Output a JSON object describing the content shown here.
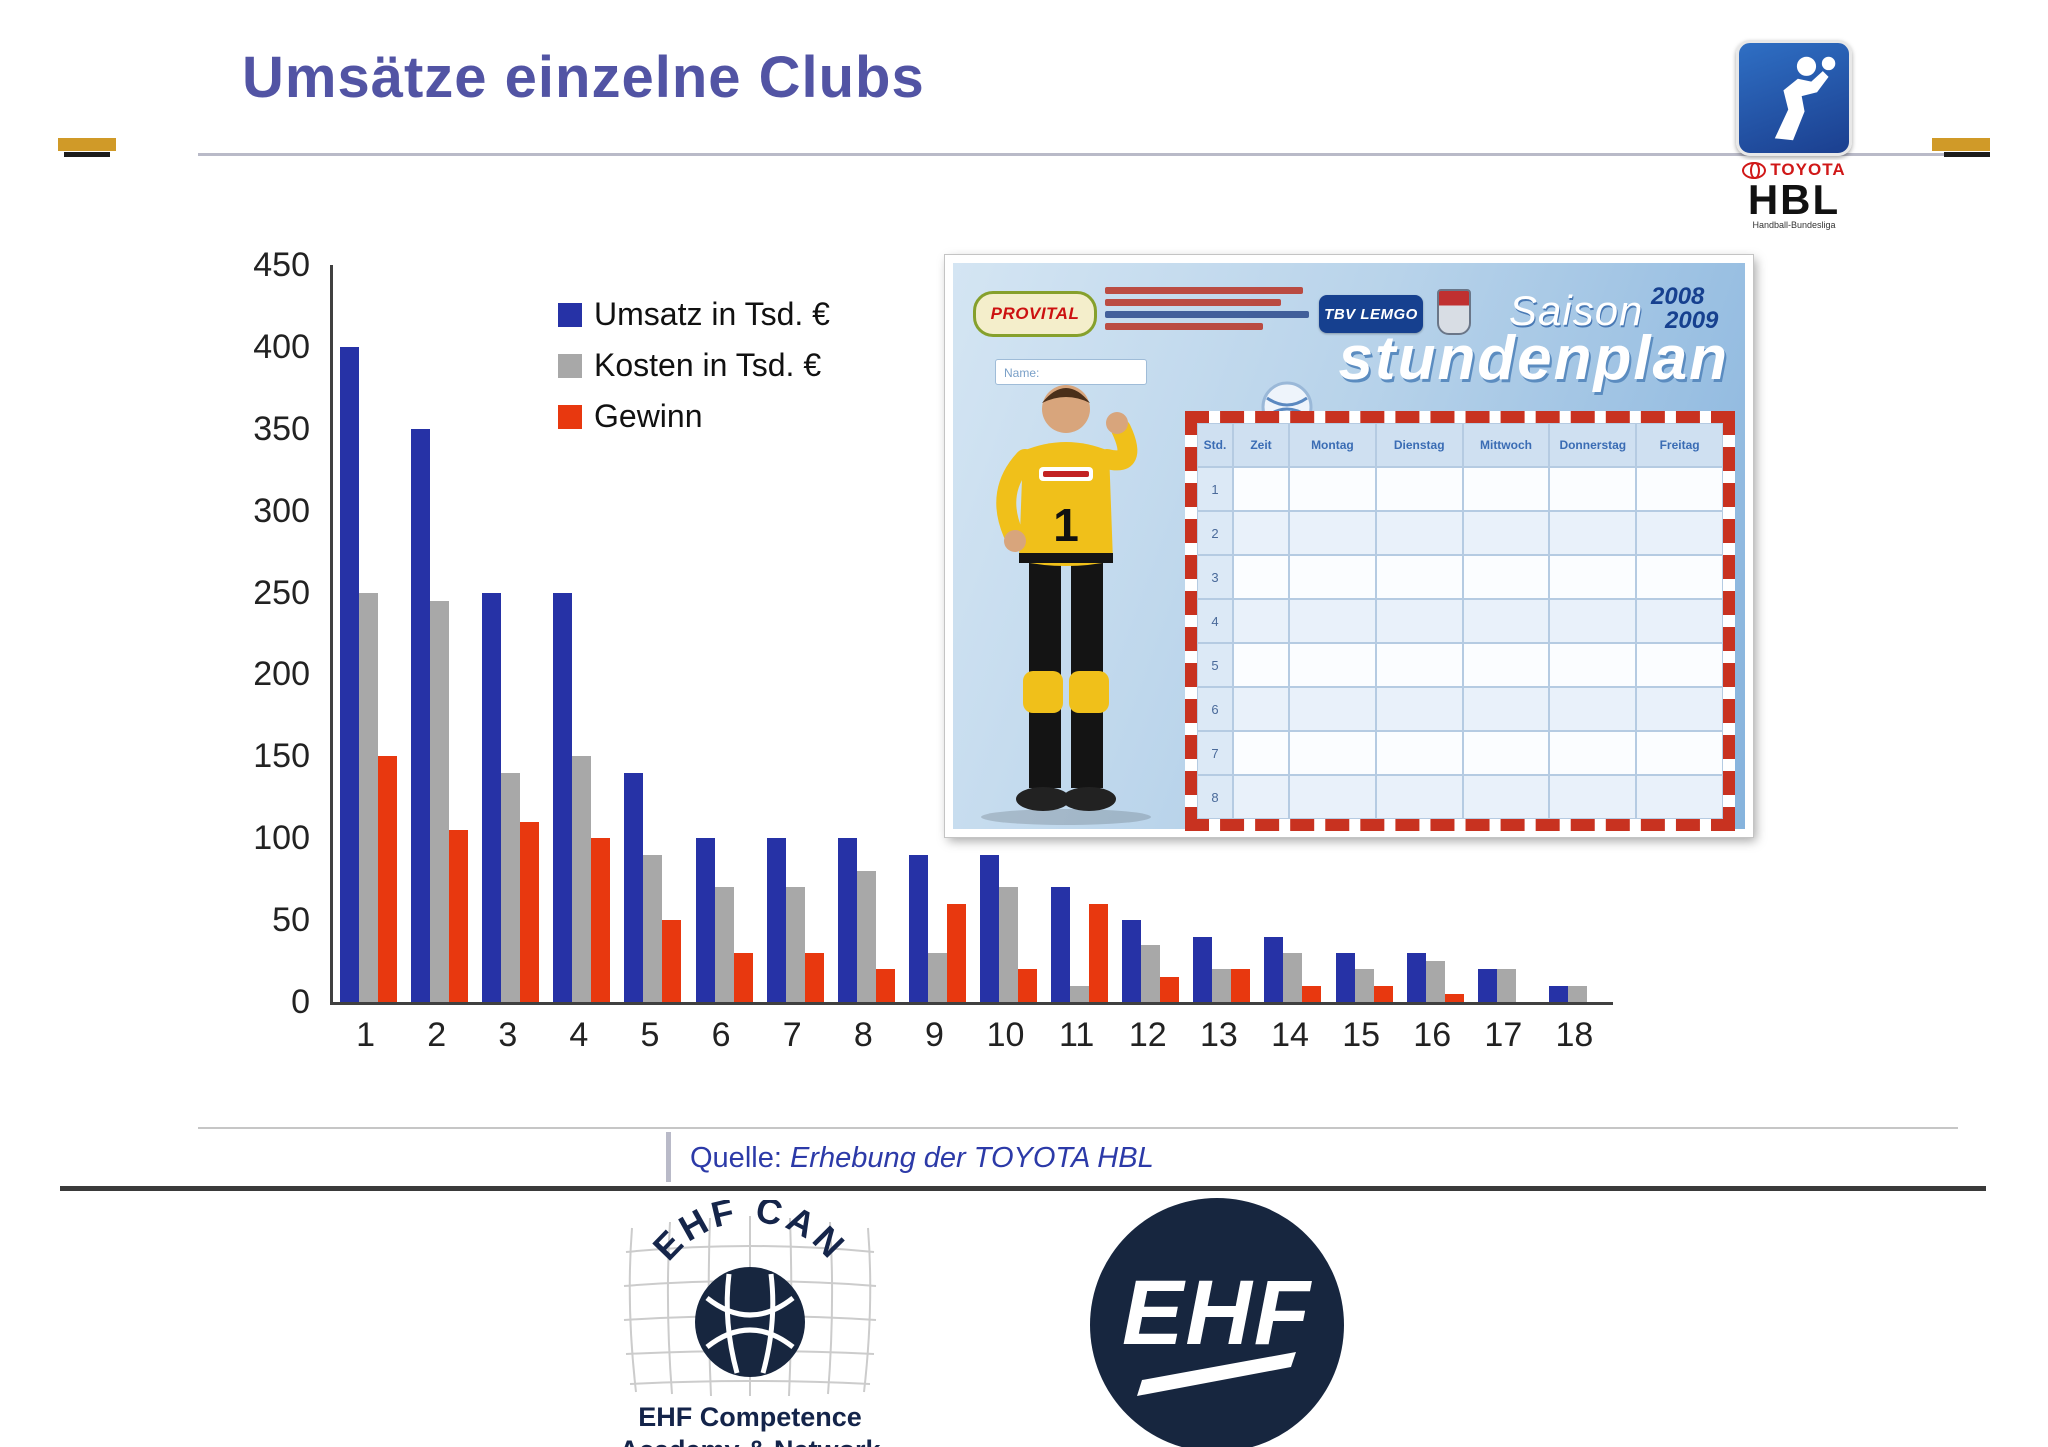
{
  "slide": {
    "title": "Umsätze einzelne Clubs",
    "source_label": "Quelle:",
    "source_text": "Erhebung der TOYOTA HBL"
  },
  "chart_data": {
    "type": "bar",
    "title": "Umsätze einzelne Clubs",
    "xlabel": "",
    "ylabel": "",
    "ylim": [
      0,
      450
    ],
    "ytick_step": 50,
    "grid": false,
    "legend_position": "top-left-inside",
    "categories": [
      "1",
      "2",
      "3",
      "4",
      "5",
      "6",
      "7",
      "8",
      "9",
      "10",
      "11",
      "12",
      "13",
      "14",
      "15",
      "16",
      "17",
      "18"
    ],
    "series": [
      {
        "key": "umsatz",
        "name": "Umsatz in Tsd. €",
        "color": "#2632a6",
        "values": [
          400,
          350,
          250,
          250,
          140,
          100,
          100,
          100,
          90,
          90,
          70,
          50,
          40,
          40,
          30,
          30,
          20,
          10
        ]
      },
      {
        "key": "kosten",
        "name": "Kosten in Tsd. €",
        "color": "#a8a8a8",
        "values": [
          250,
          245,
          140,
          150,
          90,
          70,
          70,
          80,
          30,
          70,
          10,
          35,
          20,
          30,
          20,
          25,
          20,
          10
        ]
      },
      {
        "key": "gewinn",
        "name": "Gewinn",
        "color": "#e8380f",
        "values": [
          150,
          105,
          110,
          100,
          50,
          30,
          30,
          20,
          60,
          20,
          60,
          15,
          20,
          10,
          10,
          5,
          0,
          0
        ]
      }
    ]
  },
  "hbl_logo": {
    "toyota": "TOYOTA",
    "hbl": "HBL",
    "subtitle": "Handball-Bundesliga"
  },
  "poster": {
    "provital": "PROVITAL",
    "tbv": "TBV LEMGO",
    "saison": "Saison",
    "season_year1": "2008",
    "season_year2": "2009",
    "title": "stundenplan",
    "name_label": "Name:",
    "keeper_number": "1",
    "table_headers": [
      "Std.",
      "Zeit",
      "Montag",
      "Dienstag",
      "Mittwoch",
      "Donnerstag",
      "Freitag"
    ],
    "row_count": 8
  },
  "footer": {
    "ehf_can_arc": "EHF CAN",
    "ehf_can_caption1": "EHF Competence",
    "ehf_can_caption2": "Academy & Network",
    "ehf": "EHF"
  }
}
